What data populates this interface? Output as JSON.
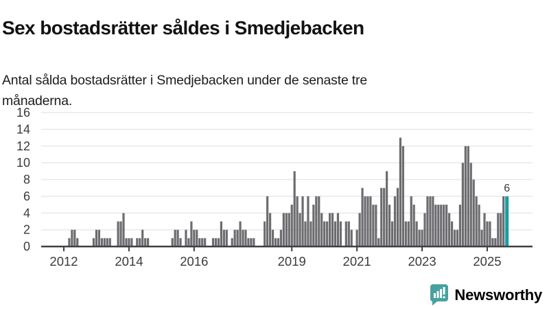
{
  "header": {
    "title": "Sex bostadsrätter såldes i Smedjebacken",
    "subtitle": "Antal sålda bostadsrätter i Smedjebacken under de senaste tre\nmånaderna."
  },
  "chart_data": {
    "type": "bar",
    "title": "Sex bostadsrätter såldes i Smedjebacken",
    "ylabel": "",
    "xlabel": "",
    "ylim": [
      0,
      16
    ],
    "y_ticks": [
      0,
      2,
      4,
      6,
      8,
      10,
      12,
      14,
      16
    ],
    "x_tick_years": [
      2012,
      2014,
      2016,
      2019,
      2021,
      2023,
      2025
    ],
    "grid": "horizontal",
    "start_month": "2011-05",
    "series": [
      {
        "year": 2011,
        "first_month": 5,
        "values": [
          0,
          0,
          0,
          0,
          0,
          0,
          0,
          0
        ]
      },
      {
        "year": 2012,
        "first_month": 1,
        "values": [
          0,
          0,
          1,
          2,
          2,
          1,
          0,
          0,
          0,
          0,
          0,
          1
        ]
      },
      {
        "year": 2013,
        "first_month": 1,
        "values": [
          2,
          2,
          1,
          1,
          1,
          1,
          0,
          0,
          3,
          3,
          4,
          1
        ]
      },
      {
        "year": 2014,
        "first_month": 1,
        "values": [
          1,
          1,
          0,
          1,
          1,
          2,
          1,
          1,
          0,
          0,
          0,
          0
        ]
      },
      {
        "year": 2015,
        "first_month": 1,
        "values": [
          0,
          0,
          0,
          0,
          1,
          2,
          2,
          1,
          0,
          2,
          1,
          3
        ]
      },
      {
        "year": 2016,
        "first_month": 1,
        "values": [
          2,
          2,
          1,
          1,
          1,
          0,
          0,
          1,
          1,
          1,
          3,
          2
        ]
      },
      {
        "year": 2017,
        "first_month": 1,
        "values": [
          2,
          0,
          1,
          2,
          2,
          3,
          2,
          2,
          1,
          1,
          1,
          0
        ]
      },
      {
        "year": 2018,
        "first_month": 1,
        "values": [
          0,
          0,
          3,
          6,
          4,
          2,
          1,
          1,
          2,
          4,
          4,
          4
        ]
      },
      {
        "year": 2019,
        "first_month": 1,
        "values": [
          5,
          9,
          6,
          4,
          6,
          3,
          6,
          3,
          5,
          6,
          6,
          4
        ]
      },
      {
        "year": 2020,
        "first_month": 1,
        "values": [
          3,
          3,
          4,
          4,
          3,
          4,
          3,
          0,
          3,
          3,
          2,
          0
        ]
      },
      {
        "year": 2021,
        "first_month": 1,
        "values": [
          2,
          4,
          7,
          6,
          6,
          6,
          5,
          5,
          1,
          7,
          7,
          9
        ]
      },
      {
        "year": 2022,
        "first_month": 1,
        "values": [
          5,
          3,
          6,
          7,
          13,
          12,
          3,
          3,
          6,
          5,
          3,
          2
        ]
      },
      {
        "year": 2023,
        "first_month": 1,
        "values": [
          2,
          4,
          6,
          6,
          6,
          5,
          5,
          5,
          5,
          5,
          4,
          3
        ]
      },
      {
        "year": 2024,
        "first_month": 1,
        "values": [
          2,
          2,
          5,
          10,
          12,
          12,
          10,
          8,
          6,
          5,
          2,
          4
        ]
      },
      {
        "year": 2025,
        "first_month": 1,
        "values": [
          3,
          3,
          1,
          1,
          4,
          4,
          6,
          6
        ]
      }
    ],
    "highlight": {
      "position": "last",
      "value": 6,
      "label": "6"
    },
    "colors": {
      "bar": "#6c6c70",
      "highlight_bar": "#14a0a0",
      "axis": "#3f3f44",
      "grid": "#e8e8e8",
      "tick_label": "#3b3b3b",
      "value_label": "#3a3a3a"
    }
  },
  "branding": {
    "logo_text": "Newsworthy",
    "logo_color": "#48a19f",
    "logo_icon": "speech-bubble-with-bar-chart-and-exclamation"
  }
}
